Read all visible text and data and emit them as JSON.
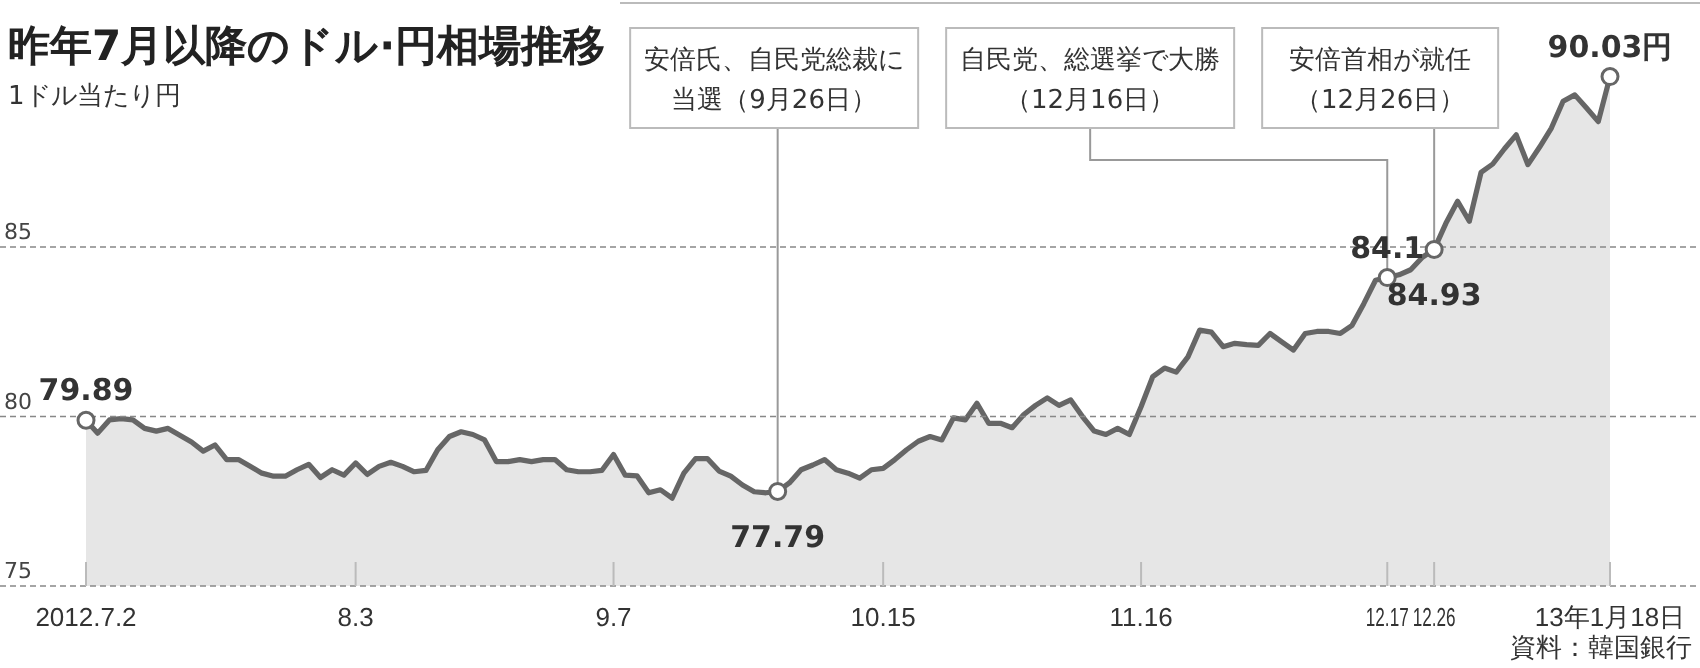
{
  "chart_data": {
    "type": "area",
    "title": "昨年7月以降のドル·円相場推移",
    "subtitle": "1ドル当たり円",
    "categories": [
      "2012.7.2",
      null,
      null,
      null,
      null,
      null,
      null,
      null,
      null,
      null,
      null,
      null,
      null,
      null,
      null,
      null,
      null,
      null,
      null,
      null,
      null,
      null,
      null,
      "8.3",
      null,
      null,
      null,
      null,
      null,
      null,
      null,
      null,
      null,
      null,
      null,
      null,
      null,
      null,
      null,
      null,
      null,
      null,
      null,
      null,
      null,
      "9.7",
      null,
      null,
      null,
      null,
      null,
      null,
      null,
      null,
      null,
      null,
      null,
      null,
      null,
      null,
      null,
      null,
      null,
      null,
      null,
      null,
      null,
      null,
      "10.15",
      null,
      null,
      null,
      null,
      null,
      null,
      null,
      null,
      null,
      null,
      null,
      null,
      null,
      null,
      null,
      null,
      null,
      null,
      null,
      null,
      null,
      "11.16",
      null,
      null,
      null,
      null,
      null,
      null,
      null,
      null,
      null,
      null,
      null,
      null,
      null,
      null,
      null,
      null,
      null,
      null,
      null,
      null,
      "12.17",
      null,
      null,
      null,
      "12.26",
      null,
      null,
      null,
      null,
      null,
      null,
      null,
      null,
      null,
      null,
      null,
      null,
      null,
      null,
      "13年1月18日"
    ],
    "series": [
      {
        "color": "#666666",
        "values": [
          79.89,
          79.51,
          79.9,
          79.94,
          79.9,
          79.65,
          79.57,
          79.65,
          79.45,
          79.25,
          78.98,
          79.16,
          78.73,
          78.73,
          78.53,
          78.33,
          78.24,
          78.24,
          78.43,
          78.59,
          78.2,
          78.43,
          78.27,
          78.63,
          78.29,
          78.53,
          78.65,
          78.53,
          78.37,
          78.41,
          79.02,
          79.41,
          79.55,
          79.47,
          79.31,
          78.67,
          78.67,
          78.73,
          78.67,
          78.73,
          78.73,
          78.43,
          78.37,
          78.37,
          78.41,
          78.88,
          78.27,
          78.25,
          77.75,
          77.84,
          77.59,
          78.33,
          78.76,
          78.76,
          78.39,
          78.24,
          77.98,
          77.78,
          77.75,
          77.79,
          78.04,
          78.43,
          78.57,
          78.73,
          78.43,
          78.33,
          78.18,
          78.43,
          78.47,
          78.73,
          79.02,
          79.27,
          79.41,
          79.31,
          79.96,
          79.9,
          80.39,
          79.8,
          79.8,
          79.67,
          80.06,
          80.33,
          80.55,
          80.33,
          80.49,
          80,
          79.57,
          79.47,
          79.65,
          79.47,
          80.29,
          81.18,
          81.43,
          81.31,
          81.76,
          82.55,
          82.49,
          82.06,
          82.16,
          82.12,
          82.1,
          82.45,
          82.2,
          81.96,
          82.45,
          82.51,
          82.51,
          82.45,
          82.69,
          83.33,
          84.02,
          84.1,
          84.18,
          84.33,
          84.7,
          84.93,
          85.7,
          86.35,
          85.76,
          87.2,
          87.45,
          87.9,
          88.31,
          87.43,
          87.95,
          88.51,
          89.3,
          89.49,
          89.1,
          88.7,
          90.03
        ],
        "value_labels": [
          "79.89",
          null,
          null,
          null,
          null,
          null,
          null,
          null,
          null,
          null,
          null,
          null,
          null,
          null,
          null,
          null,
          null,
          null,
          null,
          null,
          null,
          null,
          null,
          null,
          null,
          null,
          null,
          null,
          null,
          null,
          null,
          null,
          null,
          null,
          null,
          null,
          null,
          null,
          null,
          null,
          null,
          null,
          null,
          null,
          null,
          null,
          null,
          null,
          null,
          null,
          null,
          null,
          null,
          null,
          null,
          null,
          null,
          null,
          null,
          "77.79",
          null,
          null,
          null,
          null,
          null,
          null,
          null,
          null,
          null,
          null,
          null,
          null,
          null,
          null,
          null,
          null,
          null,
          null,
          null,
          null,
          null,
          null,
          null,
          null,
          null,
          null,
          null,
          null,
          null,
          null,
          null,
          null,
          null,
          null,
          null,
          null,
          null,
          null,
          null,
          null,
          null,
          null,
          null,
          null,
          null,
          null,
          null,
          null,
          null,
          null,
          null,
          "84.1",
          null,
          null,
          null,
          "84.93",
          null,
          null,
          null,
          null,
          null,
          null,
          null,
          null,
          null,
          null,
          null,
          null,
          null,
          null,
          "90.03円"
        ]
      }
    ],
    "ylim": [
      75,
      92.2
    ],
    "yticks": [
      75,
      80,
      85
    ],
    "grid": "y",
    "annotations": [
      {
        "text": "安倍氏、自民党総裁に当選（9月26日）",
        "y": 77.79
      },
      {
        "text": "自民党、総選挙で大勝（12月16日）",
        "x": "12.17",
        "y": 84.1
      },
      {
        "text": "安倍首相が就任（12月26日）",
        "x": "12.26",
        "y": 84.93
      },
      "資料：韓国銀行"
    ]
  }
}
